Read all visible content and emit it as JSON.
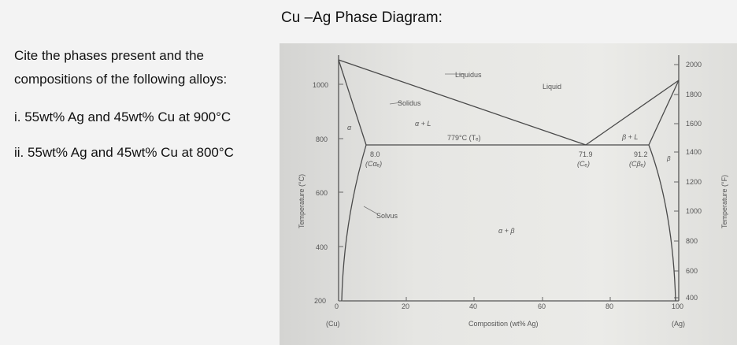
{
  "title": "Cu –Ag Phase Diagram:",
  "question": {
    "line1": "Cite the phases present and the",
    "line2": "compositions of the following alloys:",
    "line3": "i. 55wt% Ag and 45wt% Cu at 900°C",
    "line4": "ii. 55wt% Ag and 45wt% Cu at 800°C"
  },
  "diagram": {
    "left_axis_label": "Temperature (°C)",
    "right_axis_label": "Temperature (°F)",
    "x_axis_label": "Composition (wt% Ag)",
    "x_left_end": "(Cu)",
    "x_right_end": "(Ag)",
    "left_ticks": [
      "200",
      "400",
      "600",
      "800",
      "1000"
    ],
    "right_ticks": [
      "400",
      "600",
      "800",
      "1000",
      "1200",
      "1400",
      "1600",
      "1800",
      "2000"
    ],
    "x_ticks": [
      "0",
      "20",
      "40",
      "60",
      "80",
      "100"
    ],
    "labels": {
      "liquidus": "Liquidus",
      "liquid": "Liquid",
      "solidus": "Solidus",
      "alpha_l": "α + L",
      "beta_l": "β + L",
      "alpha": "α",
      "beta": "β",
      "eutectic_temp": "779°C (Tₑ)",
      "solvus": "Solvus",
      "alpha_beta": "α + β",
      "c_alpha_value": "8.0",
      "c_alpha_label": "(Cαₑ)",
      "c_e_value": "71.9",
      "c_e_label": "(Cₑ)",
      "c_beta_value": "91.2",
      "c_beta_label": "(Cβₑ)"
    }
  }
}
